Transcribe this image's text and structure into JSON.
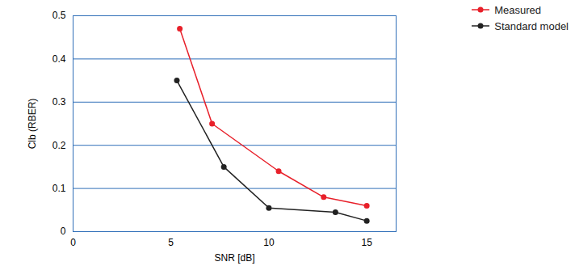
{
  "chart_data": {
    "type": "line",
    "x_label": "SNR [dB]",
    "y_label": "Clb (RBER)",
    "xlim": [
      0,
      16.5
    ],
    "xticks": [
      0,
      5,
      10,
      15
    ],
    "ylim": [
      0,
      0.5
    ],
    "yticks": [
      0,
      0.1,
      0.2,
      0.3,
      0.4,
      0.5
    ],
    "grid": true,
    "legend": "top right",
    "series": [
      {
        "name": "Measured",
        "color": "#e8202a",
        "marker": "circle",
        "x": [
          5.45,
          7.1,
          10.5,
          12.8,
          15
        ],
        "values": [
          0.47,
          0.25,
          0.14,
          0.08,
          0.06
        ]
      },
      {
        "name": "Standard model",
        "color": "#222222",
        "marker": "circle",
        "x": [
          5.3,
          7.7,
          10,
          13.4,
          15
        ],
        "values": [
          0.35,
          0.15,
          0.055,
          0.045,
          0.025
        ]
      }
    ]
  }
}
